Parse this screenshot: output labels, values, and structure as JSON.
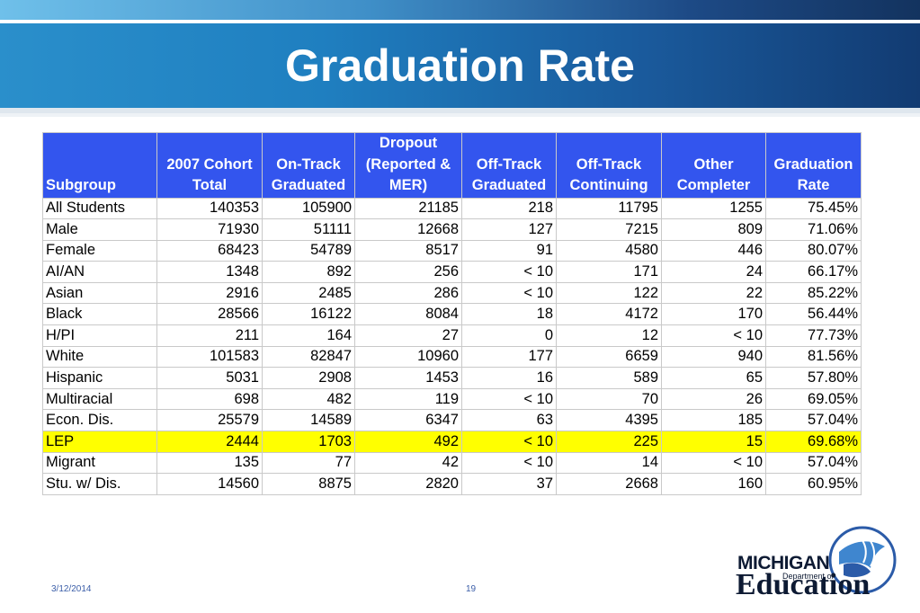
{
  "title": "Graduation Rate",
  "table": {
    "headers": [
      "Subgroup",
      "2007 Cohort Total",
      "On-Track Graduated",
      "Dropout (Reported & MER)",
      "Off-Track Graduated",
      "Off-Track Continuing",
      "Other Completer",
      "Graduation Rate"
    ],
    "header_lines": [
      [
        "Subgroup"
      ],
      [
        "2007 Cohort",
        "Total"
      ],
      [
        "On-Track",
        "Graduated"
      ],
      [
        "Dropout",
        "(Reported &",
        "MER)"
      ],
      [
        "Off-Track",
        "Graduated"
      ],
      [
        "Off-Track",
        "Continuing"
      ],
      [
        "Other",
        "Completer"
      ],
      [
        "Graduation",
        "Rate"
      ]
    ],
    "rows": [
      {
        "subgroup": "All Students",
        "total": "140353",
        "ontrack": "105900",
        "dropout": "21185",
        "offgrad": "218",
        "offcont": "11795",
        "other": "1255",
        "rate": "75.45%"
      },
      {
        "subgroup": "Male",
        "total": "71930",
        "ontrack": "51111",
        "dropout": "12668",
        "offgrad": "127",
        "offcont": "7215",
        "other": "809",
        "rate": "71.06%"
      },
      {
        "subgroup": "Female",
        "total": "68423",
        "ontrack": "54789",
        "dropout": "8517",
        "offgrad": "91",
        "offcont": "4580",
        "other": "446",
        "rate": "80.07%"
      },
      {
        "subgroup": "AI/AN",
        "total": "1348",
        "ontrack": "892",
        "dropout": "256",
        "offgrad": "< 10",
        "offcont": "171",
        "other": "24",
        "rate": "66.17%"
      },
      {
        "subgroup": "Asian",
        "total": "2916",
        "ontrack": "2485",
        "dropout": "286",
        "offgrad": "< 10",
        "offcont": "122",
        "other": "22",
        "rate": "85.22%"
      },
      {
        "subgroup": "Black",
        "total": "28566",
        "ontrack": "16122",
        "dropout": "8084",
        "offgrad": "18",
        "offcont": "4172",
        "other": "170",
        "rate": "56.44%"
      },
      {
        "subgroup": "H/PI",
        "total": "211",
        "ontrack": "164",
        "dropout": "27",
        "offgrad": "0",
        "offcont": "12",
        "other": "< 10",
        "rate": "77.73%"
      },
      {
        "subgroup": "White",
        "total": "101583",
        "ontrack": "82847",
        "dropout": "10960",
        "offgrad": "177",
        "offcont": "6659",
        "other": "940",
        "rate": "81.56%"
      },
      {
        "subgroup": "Hispanic",
        "total": "5031",
        "ontrack": "2908",
        "dropout": "1453",
        "offgrad": "16",
        "offcont": "589",
        "other": "65",
        "rate": "57.80%"
      },
      {
        "subgroup": "Multiracial",
        "total": "698",
        "ontrack": "482",
        "dropout": "119",
        "offgrad": "< 10",
        "offcont": "70",
        "other": "26",
        "rate": "69.05%"
      },
      {
        "subgroup": "Econ. Dis.",
        "total": "25579",
        "ontrack": "14589",
        "dropout": "6347",
        "offgrad": "63",
        "offcont": "4395",
        "other": "185",
        "rate": "57.04%"
      },
      {
        "subgroup": "LEP",
        "total": "2444",
        "ontrack": "1703",
        "dropout": "492",
        "offgrad": "< 10",
        "offcont": "225",
        "other": "15",
        "rate": "69.68%",
        "highlight": true
      },
      {
        "subgroup": "Migrant",
        "total": "135",
        "ontrack": "77",
        "dropout": "42",
        "offgrad": "< 10",
        "offcont": "14",
        "other": "< 10",
        "rate": "57.04%"
      },
      {
        "subgroup": "Stu. w/ Dis.",
        "total": "14560",
        "ontrack": "8875",
        "dropout": "2820",
        "offgrad": "37",
        "offcont": "2668",
        "other": "160",
        "rate": "60.95%"
      }
    ]
  },
  "footer": {
    "date": "3/12/2014",
    "page": "19"
  },
  "logo": {
    "line1": "MICHIGAN",
    "line2": "Department of",
    "line3": "Education"
  },
  "colors": {
    "header_bg": "#3355ee",
    "highlight": "#ffff00",
    "banner": "#1f7fc0"
  }
}
